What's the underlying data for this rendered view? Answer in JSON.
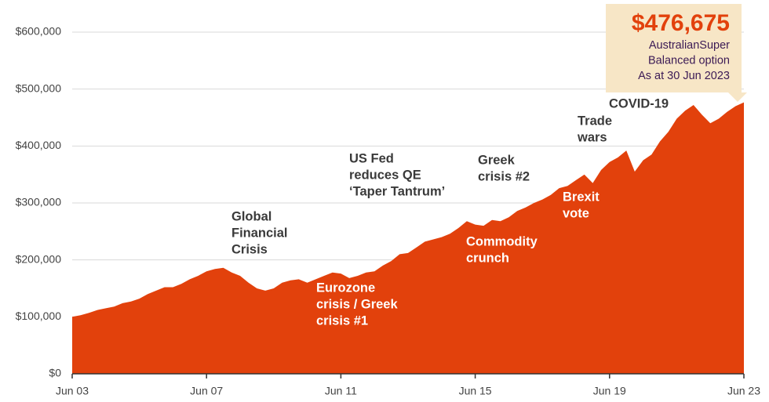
{
  "chart_data": {
    "type": "area",
    "color": "#e2410c",
    "grid": true,
    "categories": [
      "Jun 03",
      null,
      null,
      null,
      null,
      null,
      null,
      null,
      null,
      null,
      null,
      null,
      null,
      null,
      null,
      null,
      "Jun 07",
      null,
      null,
      null,
      null,
      null,
      null,
      null,
      null,
      null,
      null,
      null,
      null,
      null,
      null,
      null,
      "Jun 11",
      null,
      null,
      null,
      null,
      null,
      null,
      null,
      null,
      null,
      null,
      null,
      null,
      null,
      null,
      null,
      "Jun 15",
      null,
      null,
      null,
      null,
      null,
      null,
      null,
      null,
      null,
      null,
      null,
      null,
      null,
      null,
      null,
      "Jun 19",
      null,
      null,
      null,
      null,
      null,
      null,
      null,
      null,
      null,
      null,
      null,
      null,
      null,
      null,
      null,
      "Jun 23"
    ],
    "values": [
      100000,
      103000,
      107000,
      112000,
      115000,
      118000,
      124000,
      127000,
      132000,
      140000,
      146000,
      152000,
      152000,
      158000,
      166000,
      172000,
      180000,
      184000,
      186000,
      178000,
      172000,
      160000,
      150000,
      146000,
      150000,
      160000,
      164000,
      166000,
      160000,
      166000,
      172000,
      178000,
      176000,
      168000,
      172000,
      178000,
      180000,
      190000,
      198000,
      210000,
      212000,
      222000,
      232000,
      236000,
      240000,
      246000,
      256000,
      268000,
      262000,
      260000,
      270000,
      268000,
      275000,
      286000,
      292000,
      300000,
      306000,
      314000,
      326000,
      330000,
      340000,
      350000,
      335000,
      358000,
      372000,
      380000,
      392000,
      355000,
      375000,
      385000,
      408000,
      425000,
      448000,
      462000,
      472000,
      455000,
      440000,
      448000,
      460000,
      470000,
      476675
    ],
    "value_labels": [
      null,
      null,
      null,
      null,
      null,
      null,
      null,
      null,
      null,
      null,
      null,
      null,
      null,
      null,
      null,
      null,
      null,
      null,
      null,
      null,
      null,
      null,
      null,
      null,
      null,
      null,
      null,
      null,
      null,
      null,
      null,
      null,
      null,
      null,
      null,
      null,
      null,
      null,
      null,
      null,
      null,
      null,
      null,
      null,
      null,
      null,
      null,
      null,
      null,
      null,
      null,
      null,
      null,
      null,
      null,
      null,
      null,
      null,
      null,
      null,
      null,
      null,
      null,
      null,
      null,
      null,
      null,
      null,
      null,
      null,
      null,
      null,
      null,
      null,
      null,
      null,
      null,
      null,
      null,
      null,
      "$476,675"
    ],
    "callout": [
      "AustralianSuper",
      "Balanced option",
      "As at 30 Jun 2023"
    ],
    "ylim": [
      0,
      650000
    ],
    "yticks": [
      {
        "value": 0,
        "label": "$0"
      },
      {
        "value": 100000,
        "label": "$100,000"
      },
      {
        "value": 200000,
        "label": "$200,000"
      },
      {
        "value": 300000,
        "label": "$300,000"
      },
      {
        "value": 400000,
        "label": "$400,000"
      },
      {
        "value": 500000,
        "label": "$500,000"
      },
      {
        "value": 600000,
        "label": "$600,000"
      }
    ],
    "annotations": [
      [
        "Global",
        "Financial",
        "Crisis"
      ],
      [
        "Eurozone",
        "crisis / Greek",
        "crisis #1"
      ],
      [
        "US Fed",
        "reduces QE",
        "‘Taper Tantrum’"
      ],
      [
        "Commodity",
        "crunch"
      ],
      [
        "Greek",
        "crisis #2"
      ],
      [
        "Brexit",
        "vote"
      ],
      [
        "Trade",
        "wars"
      ],
      [
        "COVID-19"
      ]
    ]
  }
}
